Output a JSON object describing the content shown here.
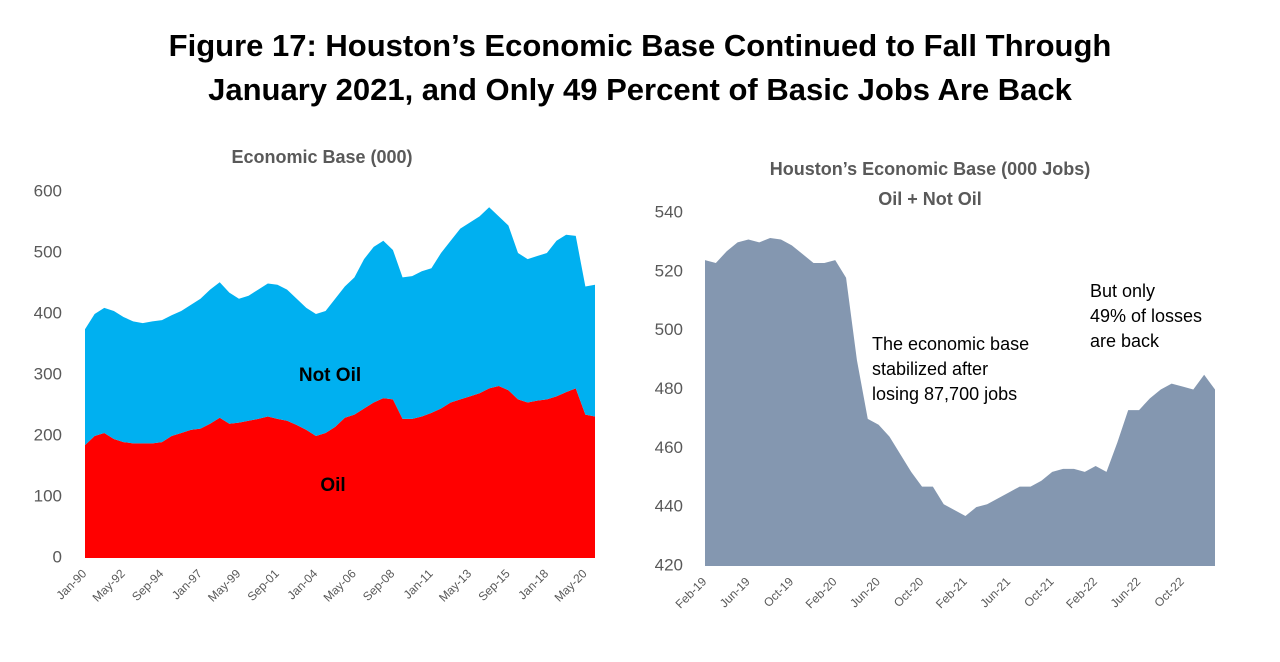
{
  "title": [
    "Figure 17: Houston’s Economic Base Continued to Fall Through",
    "January 2021, and Only 49 Percent of Basic Jobs Are Back"
  ],
  "chart_data": [
    {
      "type": "area",
      "stacked": true,
      "title": "Economic Base (000)",
      "categories": [
        "Jan-90",
        null,
        null,
        null,
        "May-92",
        null,
        null,
        null,
        "Sep-94",
        null,
        null,
        null,
        "Jan-97",
        null,
        null,
        null,
        "May-99",
        null,
        null,
        null,
        "Sep-01",
        null,
        null,
        null,
        "Jan-04",
        null,
        null,
        null,
        "May-06",
        null,
        null,
        null,
        "Sep-08",
        null,
        null,
        null,
        "Jan-11",
        null,
        null,
        null,
        "May-13",
        null,
        null,
        null,
        "Sep-15",
        null,
        null,
        null,
        "Jan-18",
        null,
        null,
        null,
        "May-20",
        null
      ],
      "series": [
        {
          "name": "Oil",
          "color": "#ff0000",
          "values": [
            185,
            200,
            205,
            195,
            190,
            188,
            188,
            188,
            190,
            200,
            205,
            210,
            212,
            220,
            230,
            220,
            222,
            225,
            228,
            232,
            228,
            225,
            218,
            210,
            200,
            205,
            215,
            230,
            235,
            245,
            255,
            262,
            260,
            228,
            228,
            232,
            238,
            245,
            255,
            260,
            265,
            270,
            278,
            282,
            275,
            260,
            255,
            258,
            260,
            265,
            272,
            278,
            235,
            232
          ]
        },
        {
          "name": "Not Oil",
          "color": "#00b0f0",
          "values": [
            190,
            200,
            205,
            210,
            205,
            200,
            197,
            200,
            200,
            198,
            200,
            205,
            213,
            220,
            222,
            215,
            203,
            205,
            212,
            218,
            220,
            215,
            207,
            200,
            200,
            200,
            210,
            215,
            225,
            245,
            255,
            258,
            245,
            232,
            234,
            238,
            237,
            255,
            265,
            280,
            285,
            290,
            297,
            278,
            270,
            240,
            235,
            237,
            240,
            255,
            258,
            250,
            210,
            216
          ]
        }
      ],
      "ylim": [
        0,
        600
      ],
      "yticks": [
        0,
        100,
        200,
        300,
        400,
        500,
        600
      ],
      "annotations": [
        [
          "Not Oil"
        ],
        [
          "Oil"
        ]
      ]
    },
    {
      "type": "area",
      "stacked": false,
      "title": [
        "Houston’s Economic Base (000 Jobs)",
        "Oil + Not Oil"
      ],
      "categories": [
        "Feb-19",
        null,
        null,
        null,
        "Jun-19",
        null,
        null,
        null,
        "Oct-19",
        null,
        null,
        null,
        "Feb-20",
        null,
        null,
        null,
        "Jun-20",
        null,
        null,
        null,
        "Oct-20",
        null,
        null,
        null,
        "Feb-21",
        null,
        null,
        null,
        "Jun-21",
        null,
        null,
        null,
        "Oct-21",
        null,
        null,
        null,
        "Feb-22",
        null,
        null,
        null,
        "Jun-22",
        null,
        null,
        null,
        "Oct-22",
        null,
        null,
        null
      ],
      "series": [
        {
          "name": "Economic Base",
          "color": "#8497b0",
          "values": [
            524,
            523,
            527,
            530,
            531,
            530,
            531.5,
            531,
            529,
            526,
            523,
            523,
            524,
            518,
            490,
            470,
            468,
            464,
            458,
            452,
            447,
            447,
            441,
            439,
            437,
            440,
            441,
            443,
            445,
            447,
            447,
            449,
            452,
            453,
            453,
            452,
            454,
            452,
            462,
            473,
            473,
            477,
            480,
            482,
            481,
            480,
            485,
            480
          ]
        }
      ],
      "ylim": [
        420,
        540
      ],
      "yticks": [
        420,
        440,
        460,
        480,
        500,
        520,
        540
      ],
      "annotations": [
        [
          "The economic base",
          "stabilized after",
          "losing 87,700 jobs"
        ],
        [
          "But only",
          "49% of losses",
          "are back"
        ]
      ]
    }
  ]
}
